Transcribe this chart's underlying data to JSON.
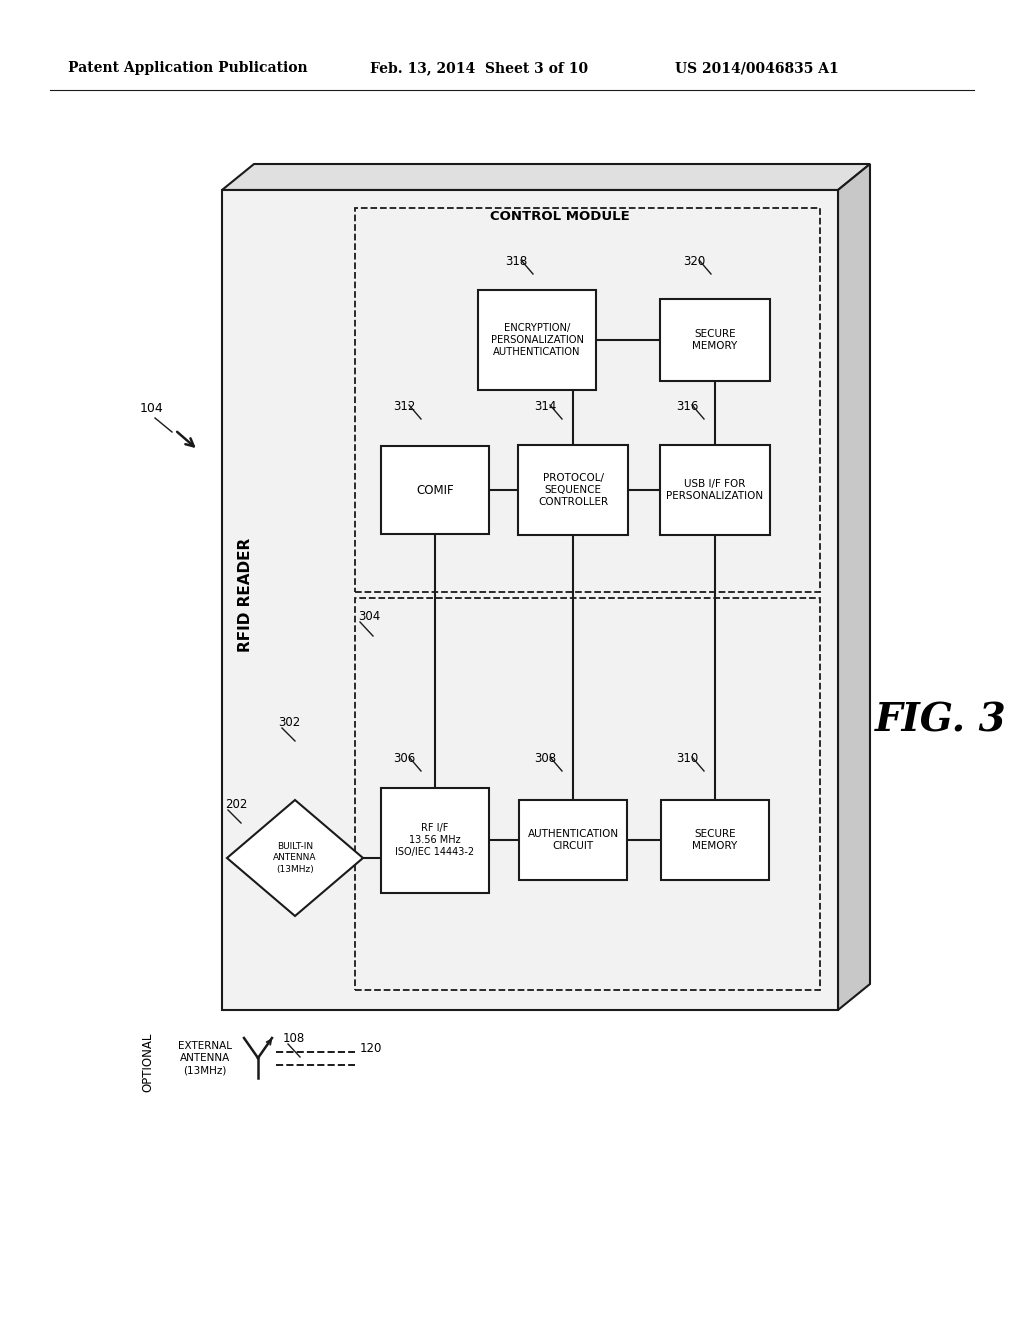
{
  "header_left": "Patent Application Publication",
  "header_mid": "Feb. 13, 2014  Sheet 3 of 10",
  "header_right": "US 2014/0046835 A1",
  "fig_label": "FIG. 3",
  "bg_color": "#ffffff",
  "line_color": "#1a1a1a",
  "rfid_reader_label": "RFID READER",
  "control_module_label": "CONTROL MODULE",
  "ref_104": "104",
  "ref_202": "202",
  "ref_302": "302",
  "ref_304": "304",
  "ref_306": "306",
  "ref_308": "308",
  "ref_310": "310",
  "ref_312": "312",
  "ref_314": "314",
  "ref_316": "316",
  "ref_318": "318",
  "ref_320": "320",
  "ref_108": "108",
  "ref_120": "120",
  "box_306_text": "RF I/F\n13.56 MHz\nISO/IEC 14443-2",
  "box_308_text": "AUTHENTICATION\nCIRCUIT",
  "box_310_text": "SECURE\nMEMORY",
  "box_312_text": "COMIF",
  "box_314_text": "PROTOCOL/\nSEQUENCE\nCONTROLLER",
  "box_316_text": "USB I/F FOR\nPERSONALIZATION",
  "box_318_text": "ENCRYPTION/\nPERSONALIZATION\nAUTHENTICATION",
  "box_320_text": "SECURE\nMEMORY",
  "diamond_text": "BUILT-IN\nANTENNA\n(13MHz)",
  "ext_antenna_text": "EXTERNAL\nANTENNA\n(13MHz)",
  "optional_label": "OPTIONAL"
}
